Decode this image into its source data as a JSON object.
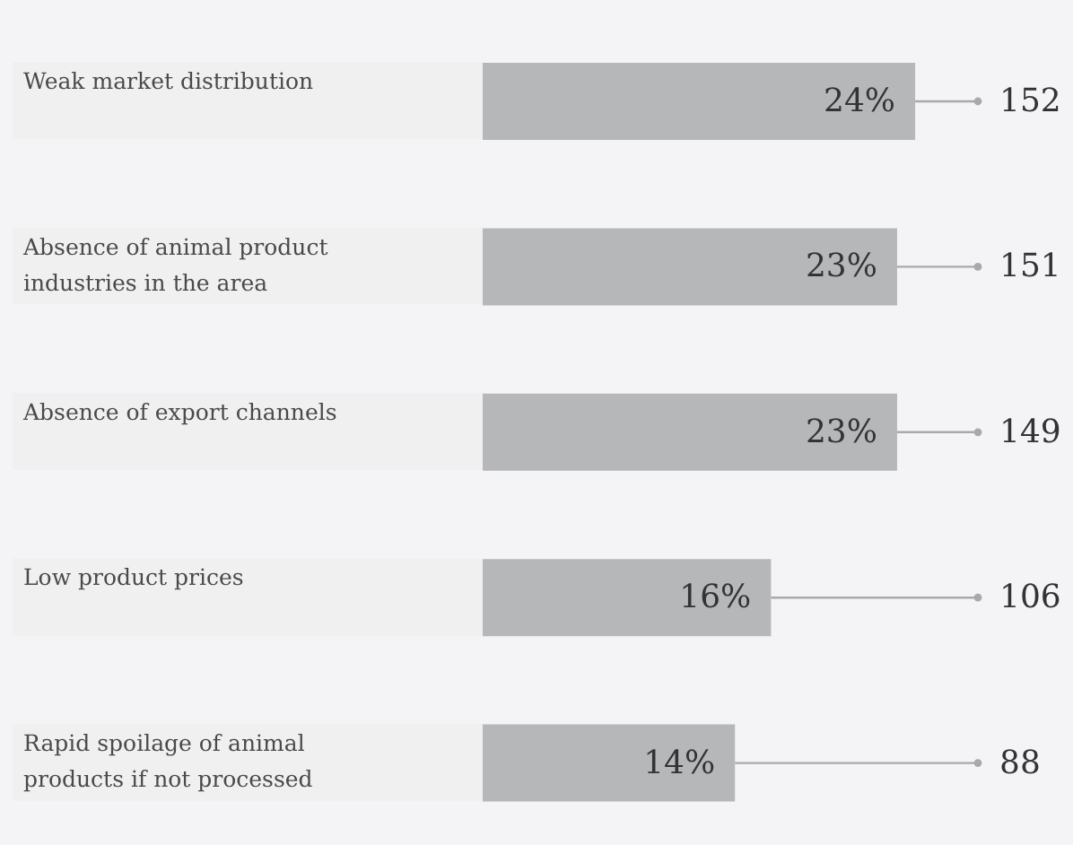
{
  "chart_data": {
    "type": "bar",
    "orientation": "horizontal",
    "categories": [
      "Weak market distribution",
      "Absence of animal product industries in the area",
      "Absence of export channels",
      "Low product prices",
      "Rapid spoilage of animal products if not processed"
    ],
    "values": [
      24,
      23,
      23,
      16,
      14
    ],
    "value_labels": [
      "24%",
      "23%",
      "23%",
      "16%",
      "14%"
    ],
    "color": "#b6b7b9",
    "annotations": [
      "152",
      "151",
      "149",
      "106",
      "88"
    ]
  }
}
